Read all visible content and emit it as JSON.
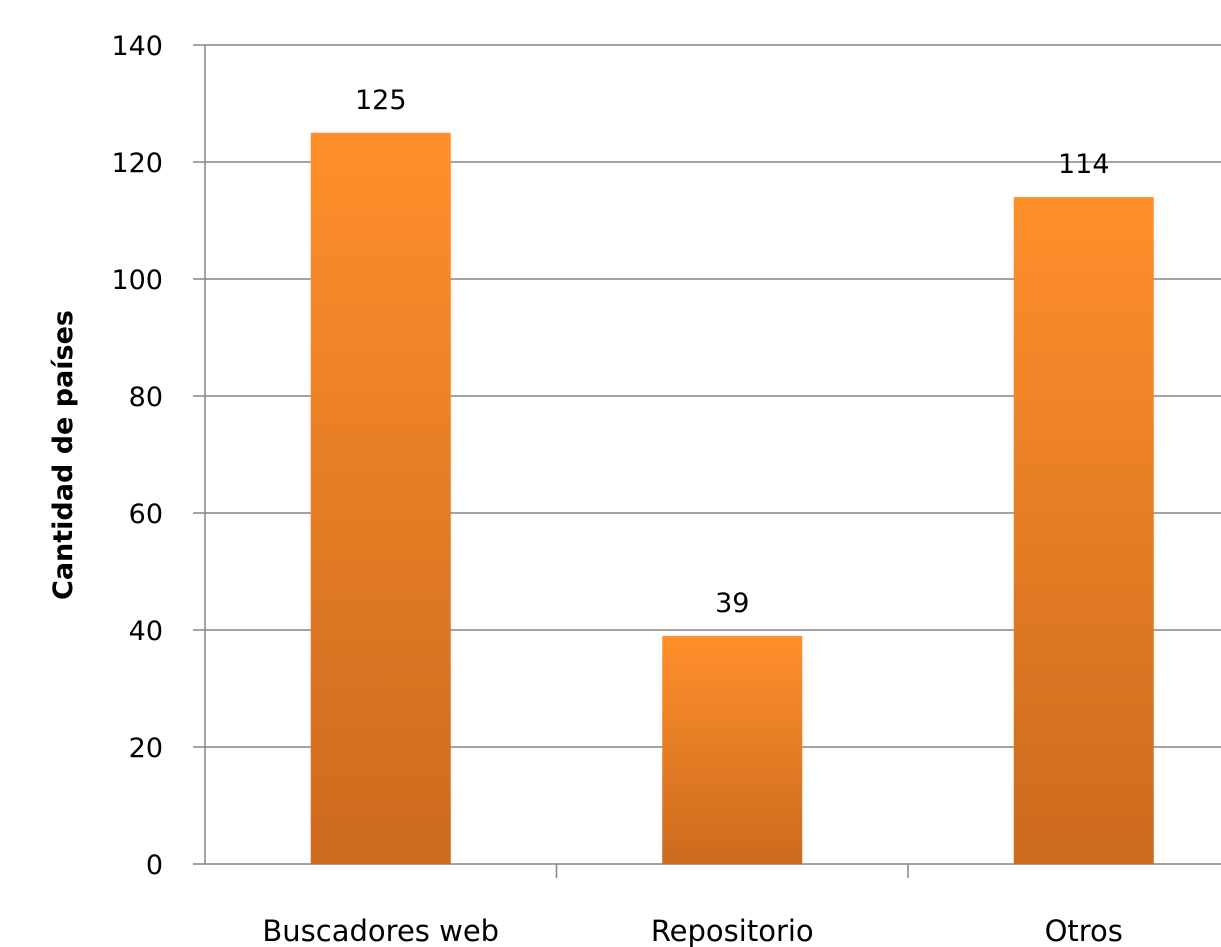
{
  "chart_data": {
    "type": "bar",
    "title": "",
    "xlabel": "",
    "ylabel": "Cantidad de países",
    "categories": [
      "Buscadores web",
      "Repositorio",
      "Otros"
    ],
    "values": [
      125,
      39,
      114
    ],
    "data_labels": [
      "125",
      "39",
      "114"
    ],
    "ylim": [
      0,
      140
    ],
    "yticks": [
      0,
      20,
      40,
      60,
      80,
      100,
      120,
      140
    ],
    "ytick_labels": [
      "0",
      "20",
      "40",
      "60",
      "80",
      "100",
      "120",
      "140"
    ],
    "grid": true,
    "legend": "none",
    "bar_color_top": "#ff8f2b",
    "bar_color_bottom": "#cc6a1e",
    "gridline_color": "#868686"
  }
}
